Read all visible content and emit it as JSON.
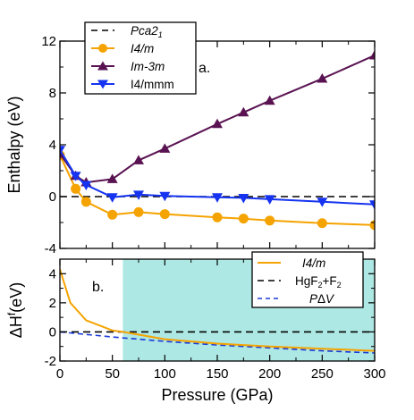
{
  "colors": {
    "pca": "#000000",
    "i4m": "#F5A300",
    "im3m": "#5A1352",
    "i4mmm": "#1533F0",
    "pdv": "#1a3ad8",
    "shade": "#AEE8E4"
  },
  "chart_data": [
    {
      "type": "line",
      "panel_label": "a.",
      "ylabel": "Enthalpy (eV)",
      "xlim": [
        0,
        300
      ],
      "ylim": [
        -4,
        12
      ],
      "yticks": [
        -4,
        0,
        4,
        8,
        12
      ],
      "legend": "top-left",
      "series": [
        {
          "name": "Pca2₁",
          "key": "pca",
          "style": "dashed",
          "x": [
            0,
            300
          ],
          "y": [
            0,
            0
          ]
        },
        {
          "name": "I4/m",
          "key": "i4m",
          "marker": "circle",
          "x": [
            0,
            15,
            25,
            50,
            75,
            100,
            150,
            175,
            200,
            250,
            300
          ],
          "y": [
            3.2,
            0.6,
            -0.4,
            -1.4,
            -1.2,
            -1.35,
            -1.6,
            -1.7,
            -1.85,
            -2.05,
            -2.2
          ]
        },
        {
          "name": "Im-3m",
          "key": "im3m",
          "marker": "triangle-up",
          "x": [
            0,
            15,
            25,
            50,
            75,
            100,
            150,
            175,
            200,
            250,
            300
          ],
          "y": [
            3.3,
            1.6,
            1.1,
            1.35,
            2.8,
            3.7,
            5.6,
            6.5,
            7.4,
            9.1,
            10.9
          ]
        },
        {
          "name": "I4/mmm",
          "key": "i4mmm",
          "marker": "triangle-down",
          "x": [
            0,
            15,
            25,
            50,
            75,
            100,
            150,
            175,
            200,
            250,
            300
          ],
          "y": [
            3.6,
            1.6,
            0.9,
            -0.05,
            0.15,
            0.05,
            -0.05,
            -0.1,
            -0.2,
            -0.4,
            -0.6
          ]
        }
      ]
    },
    {
      "type": "line",
      "panel_label": "b.",
      "ylabel": "ΔHᶠ(eV)",
      "xlabel": "Pressure (GPa)",
      "xlim": [
        0,
        300
      ],
      "ylim": [
        -2,
        5
      ],
      "xticks": [
        0,
        50,
        100,
        150,
        200,
        250,
        300
      ],
      "yticks": [
        -2,
        0,
        2,
        4
      ],
      "shaded_region_x": [
        60,
        300
      ],
      "legend": "top-right",
      "series": [
        {
          "name": "I4/m",
          "key": "i4m",
          "style": "solid",
          "x": [
            0,
            10,
            25,
            50,
            60,
            100,
            150,
            200,
            250,
            300
          ],
          "y": [
            4.3,
            2.0,
            0.8,
            0.1,
            0.0,
            -0.5,
            -0.8,
            -1.0,
            -1.15,
            -1.3
          ]
        },
        {
          "name": "HgF₂+F₂",
          "key": "pca",
          "style": "dashed",
          "x": [
            0,
            300
          ],
          "y": [
            0,
            0
          ]
        },
        {
          "name": "PΔV",
          "key": "pdv",
          "style": "dashed",
          "x": [
            0,
            50,
            100,
            150,
            200,
            250,
            300
          ],
          "y": [
            0,
            -0.35,
            -0.65,
            -0.9,
            -1.1,
            -1.3,
            -1.45
          ]
        }
      ]
    }
  ]
}
